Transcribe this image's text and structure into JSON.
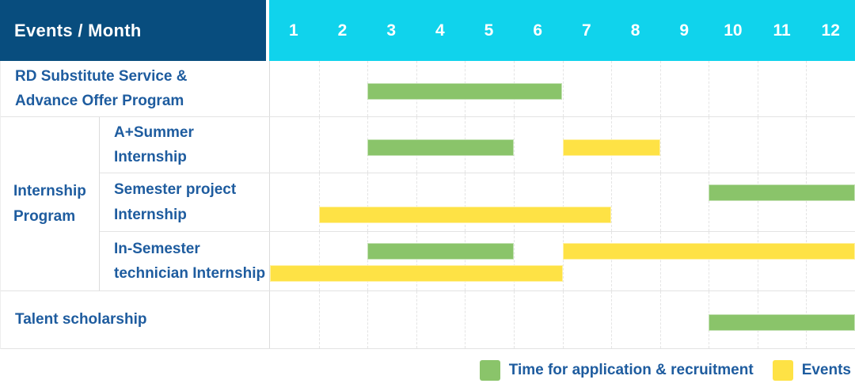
{
  "header": {
    "corner": "Events / Month",
    "months": [
      "1",
      "2",
      "3",
      "4",
      "5",
      "6",
      "7",
      "8",
      "9",
      "10",
      "11",
      "12"
    ]
  },
  "colors": {
    "header_bg": "#084d7e",
    "months_bg": "#10d3ec",
    "label_text": "#1e5c9f",
    "application_green": "#8ac46a",
    "event_yellow": "#fee245"
  },
  "chart_data": {
    "type": "bar",
    "subtype": "gantt-schedule",
    "x_axis": {
      "label": "Month",
      "ticks": [
        1,
        2,
        3,
        4,
        5,
        6,
        7,
        8,
        9,
        10,
        11,
        12
      ],
      "range": [
        1,
        12
      ]
    },
    "grid": true,
    "legend_position": "bottom-right",
    "group_label": "Internship Program",
    "series_legend": [
      {
        "key": "application",
        "label": "Time for application & recruitment",
        "color": "#8ac46a"
      },
      {
        "key": "event",
        "label": "Events",
        "color": "#fee245"
      }
    ],
    "rows": [
      {
        "label": "RD Substitute Service &\nAdvance Offer Program",
        "group": null,
        "bars": [
          {
            "series": "application",
            "start": 3,
            "end": 6,
            "lane": "center"
          }
        ]
      },
      {
        "label": "A+Summer\nInternship",
        "group": "Internship Program",
        "bars": [
          {
            "series": "application",
            "start": 3,
            "end": 5,
            "lane": "center"
          },
          {
            "series": "event",
            "start": 7,
            "end": 8,
            "lane": "center"
          }
        ]
      },
      {
        "label": "Semester project\nInternship",
        "group": "Internship Program",
        "bars": [
          {
            "series": "application",
            "start": 10,
            "end": 12,
            "lane": "upper"
          },
          {
            "series": "event",
            "start": 2,
            "end": 7,
            "lane": "lower"
          }
        ]
      },
      {
        "label": "In-Semester\ntechnician Internship",
        "group": "Internship Program",
        "bars": [
          {
            "series": "application",
            "start": 3,
            "end": 5,
            "lane": "upper"
          },
          {
            "series": "event",
            "start": 7,
            "end": 12,
            "lane": "upper"
          },
          {
            "series": "event",
            "start": 1,
            "end": 6,
            "lane": "lower"
          }
        ]
      },
      {
        "label": "Talent scholarship",
        "group": null,
        "bars": [
          {
            "series": "application",
            "start": 10,
            "end": 12,
            "lane": "center"
          }
        ]
      }
    ]
  }
}
